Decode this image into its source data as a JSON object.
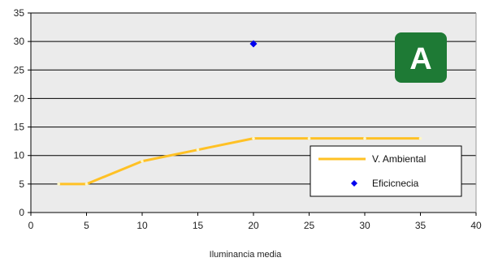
{
  "chart_data": {
    "type": "line",
    "title": "",
    "xlabel": "Iluminancia media",
    "ylabel": "",
    "xlim": [
      0,
      40
    ],
    "ylim": [
      0,
      35
    ],
    "xticks": [
      0,
      5,
      10,
      15,
      20,
      25,
      30,
      35,
      40
    ],
    "yticks": [
      0,
      5,
      10,
      15,
      20,
      25,
      30,
      35
    ],
    "grid": "horizontal",
    "plot_background": "#ebebeb",
    "series": [
      {
        "name": "V. Ambiental",
        "kind": "line",
        "color": "#ffc125",
        "x": [
          2.5,
          5,
          10,
          15,
          20,
          25,
          30,
          35
        ],
        "y": [
          5,
          5,
          9,
          11,
          13,
          13,
          13,
          13
        ]
      },
      {
        "name": "Eficicnecia",
        "kind": "scatter",
        "marker": "diamond",
        "color": "#0000ee",
        "x": [
          20
        ],
        "y": [
          29.6
        ]
      }
    ],
    "legend_position": "bottom-right",
    "badge": {
      "text": "A",
      "color": "#1e7a35",
      "position": "top-right"
    }
  }
}
